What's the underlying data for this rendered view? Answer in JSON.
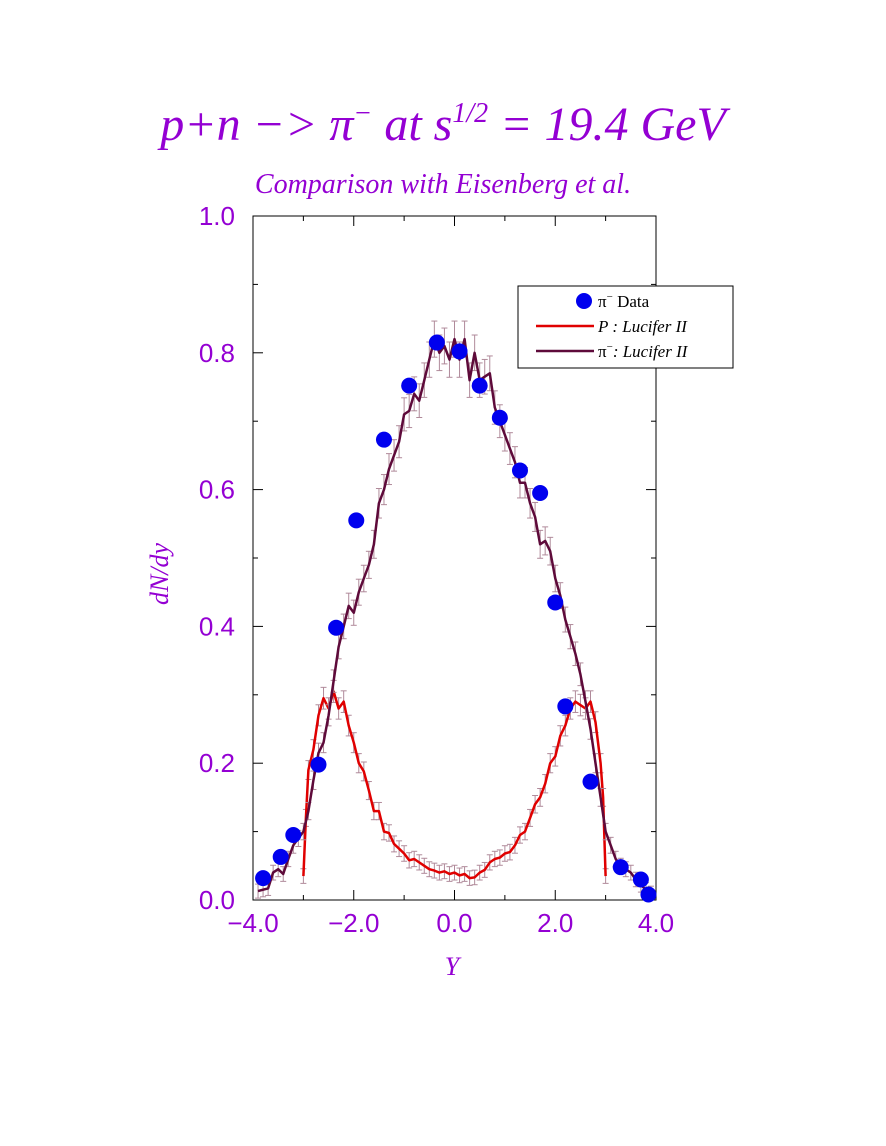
{
  "chart_data": {
    "type": "line",
    "title": {
      "prefix": "p+n −> π",
      "prefix_sup": "−",
      "middle": " at s",
      "middle_sup": "1/2",
      "suffix": " = 19.4 GeV"
    },
    "subtitle": "Comparison with Eisenberg et al.",
    "xlabel": "Y",
    "ylabel": "dN/dy",
    "xlim": [
      -4.0,
      4.0
    ],
    "ylim": [
      0.0,
      1.0
    ],
    "xticks": [
      "−4.0",
      "−2.0",
      "0.0",
      "2.0",
      "4.0"
    ],
    "yticks": [
      "0.0",
      "0.2",
      "0.4",
      "0.6",
      "0.8",
      "1.0"
    ],
    "legend": {
      "position": "top-right",
      "entries": [
        {
          "sym": "π",
          "sup": "−",
          "text": " Data",
          "italic": false
        },
        {
          "sym": "",
          "sup": "",
          "text": "P : Lucifer II",
          "italic": true
        },
        {
          "sym": "π",
          "sup": "−",
          "text": ": Lucifer II",
          "italic": true
        }
      ]
    },
    "colors": {
      "text": "#9400d3",
      "data_points": "#0000ee",
      "proton_line": "#e00000",
      "pion_line": "#5e0a3a",
      "error_bars": "#b08a9a"
    },
    "series": [
      {
        "id": "pion_data",
        "kind": "points",
        "x": [
          -3.8,
          -3.45,
          -3.2,
          -2.7,
          -2.35,
          -1.95,
          -1.4,
          -0.9,
          -0.35,
          0.1,
          0.5,
          0.9,
          1.3,
          1.7,
          2.0,
          2.2,
          2.7,
          3.3,
          3.7,
          3.85
        ],
        "y": [
          0.032,
          0.063,
          0.095,
          0.198,
          0.398,
          0.555,
          0.673,
          0.752,
          0.815,
          0.802,
          0.752,
          0.705,
          0.628,
          0.595,
          0.435,
          0.283,
          0.173,
          0.048,
          0.03,
          0.008
        ]
      },
      {
        "id": "proton_lucifer",
        "kind": "line",
        "x": [
          -3.0,
          -2.95,
          -2.9,
          -2.8,
          -2.7,
          -2.6,
          -2.5,
          -2.4,
          -2.3,
          -2.2,
          -2.1,
          -2.0,
          -1.9,
          -1.8,
          -1.7,
          -1.6,
          -1.5,
          -1.4,
          -1.3,
          -1.2,
          -1.1,
          -1.0,
          -0.9,
          -0.8,
          -0.7,
          -0.6,
          -0.5,
          -0.4,
          -0.3,
          -0.2,
          -0.1,
          0.0,
          0.1,
          0.2,
          0.3,
          0.4,
          0.5,
          0.6,
          0.7,
          0.8,
          0.9,
          1.0,
          1.1,
          1.2,
          1.3,
          1.4,
          1.5,
          1.6,
          1.7,
          1.8,
          1.9,
          2.0,
          2.1,
          2.2,
          2.3,
          2.4,
          2.5,
          2.6,
          2.7,
          2.8,
          2.9,
          2.95,
          3.0
        ],
        "y": [
          0.035,
          0.12,
          0.19,
          0.22,
          0.27,
          0.295,
          0.28,
          0.305,
          0.28,
          0.29,
          0.255,
          0.23,
          0.2,
          0.188,
          0.16,
          0.13,
          0.13,
          0.1,
          0.098,
          0.082,
          0.075,
          0.068,
          0.058,
          0.06,
          0.055,
          0.05,
          0.045,
          0.043,
          0.04,
          0.042,
          0.038,
          0.04,
          0.036,
          0.038,
          0.032,
          0.033,
          0.04,
          0.044,
          0.055,
          0.06,
          0.062,
          0.068,
          0.07,
          0.08,
          0.095,
          0.1,
          0.12,
          0.14,
          0.15,
          0.17,
          0.2,
          0.21,
          0.24,
          0.255,
          0.28,
          0.29,
          0.285,
          0.28,
          0.29,
          0.26,
          0.2,
          0.15,
          0.035
        ]
      },
      {
        "id": "pion_lucifer",
        "kind": "line",
        "x": [
          -3.9,
          -3.8,
          -3.7,
          -3.6,
          -3.5,
          -3.4,
          -3.3,
          -3.2,
          -3.1,
          -3.0,
          -2.9,
          -2.8,
          -2.7,
          -2.6,
          -2.5,
          -2.4,
          -2.3,
          -2.2,
          -2.1,
          -2.0,
          -1.9,
          -1.8,
          -1.7,
          -1.6,
          -1.5,
          -1.4,
          -1.3,
          -1.2,
          -1.1,
          -1.0,
          -0.9,
          -0.8,
          -0.7,
          -0.6,
          -0.5,
          -0.4,
          -0.3,
          -0.2,
          -0.1,
          0.0,
          0.1,
          0.2,
          0.3,
          0.4,
          0.5,
          0.6,
          0.7,
          0.8,
          0.9,
          1.0,
          1.1,
          1.2,
          1.3,
          1.4,
          1.5,
          1.6,
          1.7,
          1.8,
          1.9,
          2.0,
          2.1,
          2.2,
          2.3,
          2.4,
          2.5,
          2.6,
          2.7,
          2.8,
          2.9,
          3.0,
          3.1,
          3.2,
          3.3,
          3.4,
          3.5,
          3.6,
          3.7,
          3.8,
          3.9
        ],
        "y": [
          0.013,
          0.015,
          0.017,
          0.04,
          0.045,
          0.038,
          0.06,
          0.08,
          0.09,
          0.1,
          0.13,
          0.175,
          0.215,
          0.23,
          0.27,
          0.32,
          0.37,
          0.4,
          0.43,
          0.42,
          0.45,
          0.47,
          0.49,
          0.52,
          0.58,
          0.6,
          0.63,
          0.65,
          0.67,
          0.71,
          0.715,
          0.74,
          0.73,
          0.76,
          0.79,
          0.82,
          0.8,
          0.81,
          0.79,
          0.82,
          0.79,
          0.82,
          0.76,
          0.8,
          0.76,
          0.765,
          0.77,
          0.72,
          0.7,
          0.68,
          0.66,
          0.64,
          0.61,
          0.61,
          0.58,
          0.56,
          0.52,
          0.525,
          0.51,
          0.47,
          0.445,
          0.41,
          0.385,
          0.36,
          0.33,
          0.29,
          0.25,
          0.2,
          0.15,
          0.1,
          0.08,
          0.06,
          0.05,
          0.045,
          0.04,
          0.03,
          0.022,
          0.015,
          0.01
        ]
      }
    ]
  }
}
